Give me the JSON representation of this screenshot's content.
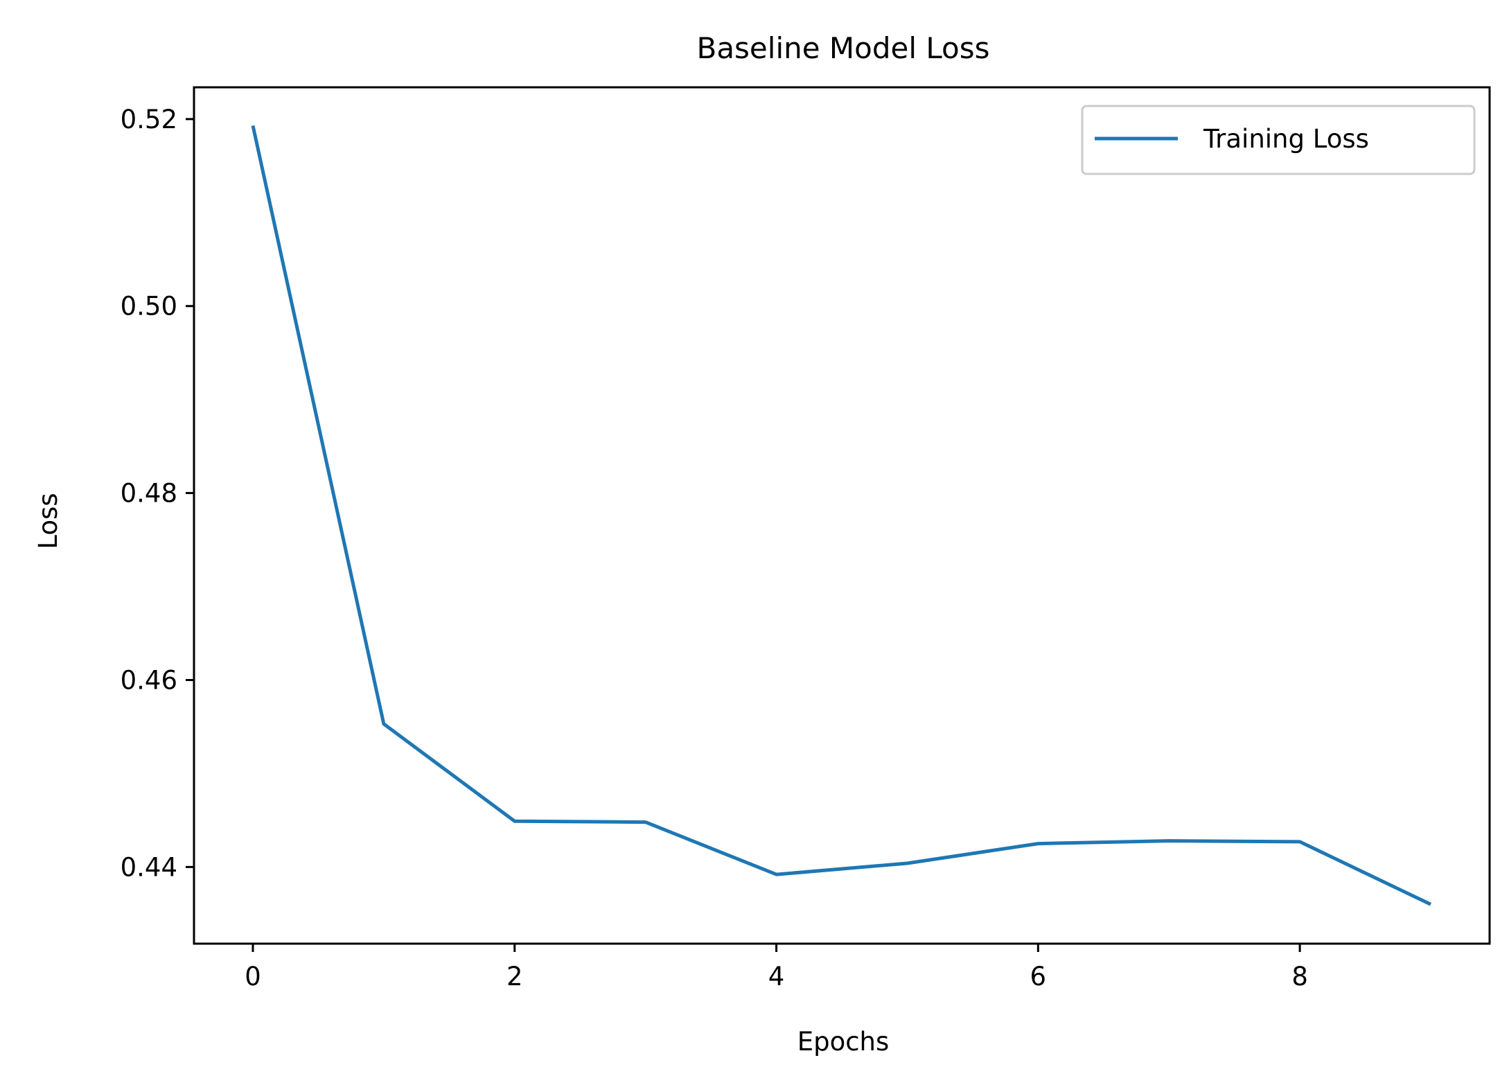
{
  "chart_data": {
    "type": "line",
    "title": "Baseline Model Loss",
    "xlabel": "Epochs",
    "ylabel": "Loss",
    "xlim": [
      -0.45,
      9.45
    ],
    "ylim": [
      0.4318,
      0.5234
    ],
    "xticks": [
      0,
      2,
      4,
      6,
      8
    ],
    "xtick_labels": [
      "0",
      "2",
      "4",
      "6",
      "8"
    ],
    "yticks": [
      0.44,
      0.46,
      0.48,
      0.5,
      0.52
    ],
    "ytick_labels": [
      "0.44",
      "0.46",
      "0.48",
      "0.50",
      "0.52"
    ],
    "grid": false,
    "legend_position": "top-right",
    "x": [
      0,
      1,
      2,
      3,
      4,
      5,
      6,
      7,
      8,
      9
    ],
    "series": [
      {
        "name": "Training Loss",
        "color": "#1f77b4",
        "values": [
          0.5193,
          0.4553,
          0.4449,
          0.4448,
          0.4392,
          0.4404,
          0.4425,
          0.4428,
          0.4427,
          0.436
        ]
      }
    ]
  }
}
